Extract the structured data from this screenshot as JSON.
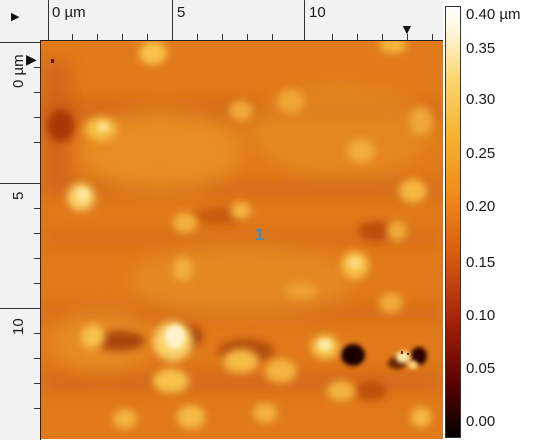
{
  "ruler_x": {
    "unit_label": "0 µm",
    "labels": [
      "5",
      "10"
    ]
  },
  "ruler_y": {
    "unit_label": "0 µm",
    "labels": [
      "5",
      "10"
    ]
  },
  "marker_label": "1",
  "color_scale": {
    "labels": [
      "0.40 µm",
      "0.35",
      "0.30",
      "0.25",
      "0.20",
      "0.15",
      "0.10",
      "0.05",
      "0.00"
    ],
    "colors": [
      "#000000",
      "#5a0000",
      "#a11e08",
      "#d85a0e",
      "#f08a18",
      "#f6b32e",
      "#fbd873",
      "#fff6d8",
      "#ffffff"
    ]
  },
  "icons": {
    "top_left_arrow": "play-right-icon",
    "top_right_arrow": "triangle-down-icon",
    "left_arrow": "triangle-right-icon"
  }
}
